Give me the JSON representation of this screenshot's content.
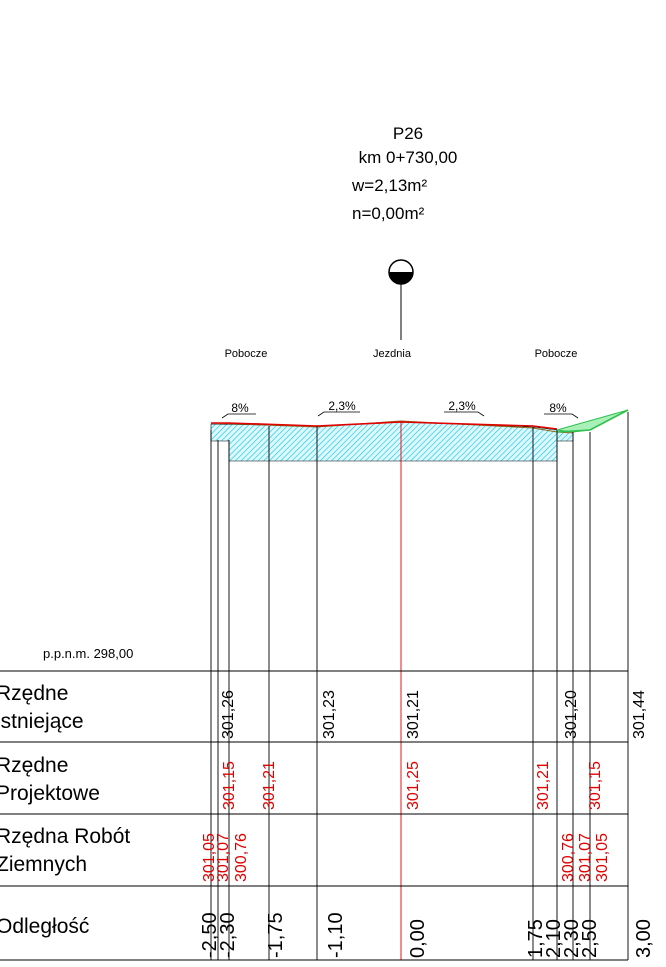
{
  "header": {
    "profile": "P26",
    "station": "km 0+730,00",
    "fill_area": "w=2,13m²",
    "cut_area": "n=0,00m²"
  },
  "zones": {
    "left": "Pobocze",
    "center": "Jezdnia",
    "right": "Pobocze"
  },
  "slopes": {
    "left_shoulder": "8%",
    "left_lane": "2,3%",
    "right_lane": "2,3%",
    "right_shoulder": "8%"
  },
  "datum": "p.p.n.m. 298,00",
  "table": {
    "rows": [
      {
        "line1": "Rzędne",
        "line2": "istniejące"
      },
      {
        "line1": "Rzędne",
        "line2": "Projektowe"
      },
      {
        "line1": "Rzędna Robót",
        "line2": "Ziemnych"
      },
      {
        "line1": "Odległość",
        "line2": ""
      }
    ]
  },
  "existing_elevations": [
    "301,26",
    "301,23",
    "301,21",
    "301,20",
    "301,44"
  ],
  "design_elevations": [
    "301,15",
    "301,21",
    "301,25",
    "301,21",
    "301,15"
  ],
  "earthwork_elevations_left": [
    "301,05",
    "301,07",
    "300,76"
  ],
  "earthwork_elevations_right": [
    "300,76",
    "301,07",
    "301,05"
  ],
  "distances": [
    "-2,50",
    "-2,30",
    "-1,75",
    "-1,10",
    "0,00",
    "1,75",
    "2,10",
    "2,30",
    "2,50",
    "3,00"
  ],
  "colors": {
    "existing_ground": "#000000",
    "design_line": "#d00000",
    "fill_hatch": "#00cfe8",
    "embankment": "#30c050"
  }
}
